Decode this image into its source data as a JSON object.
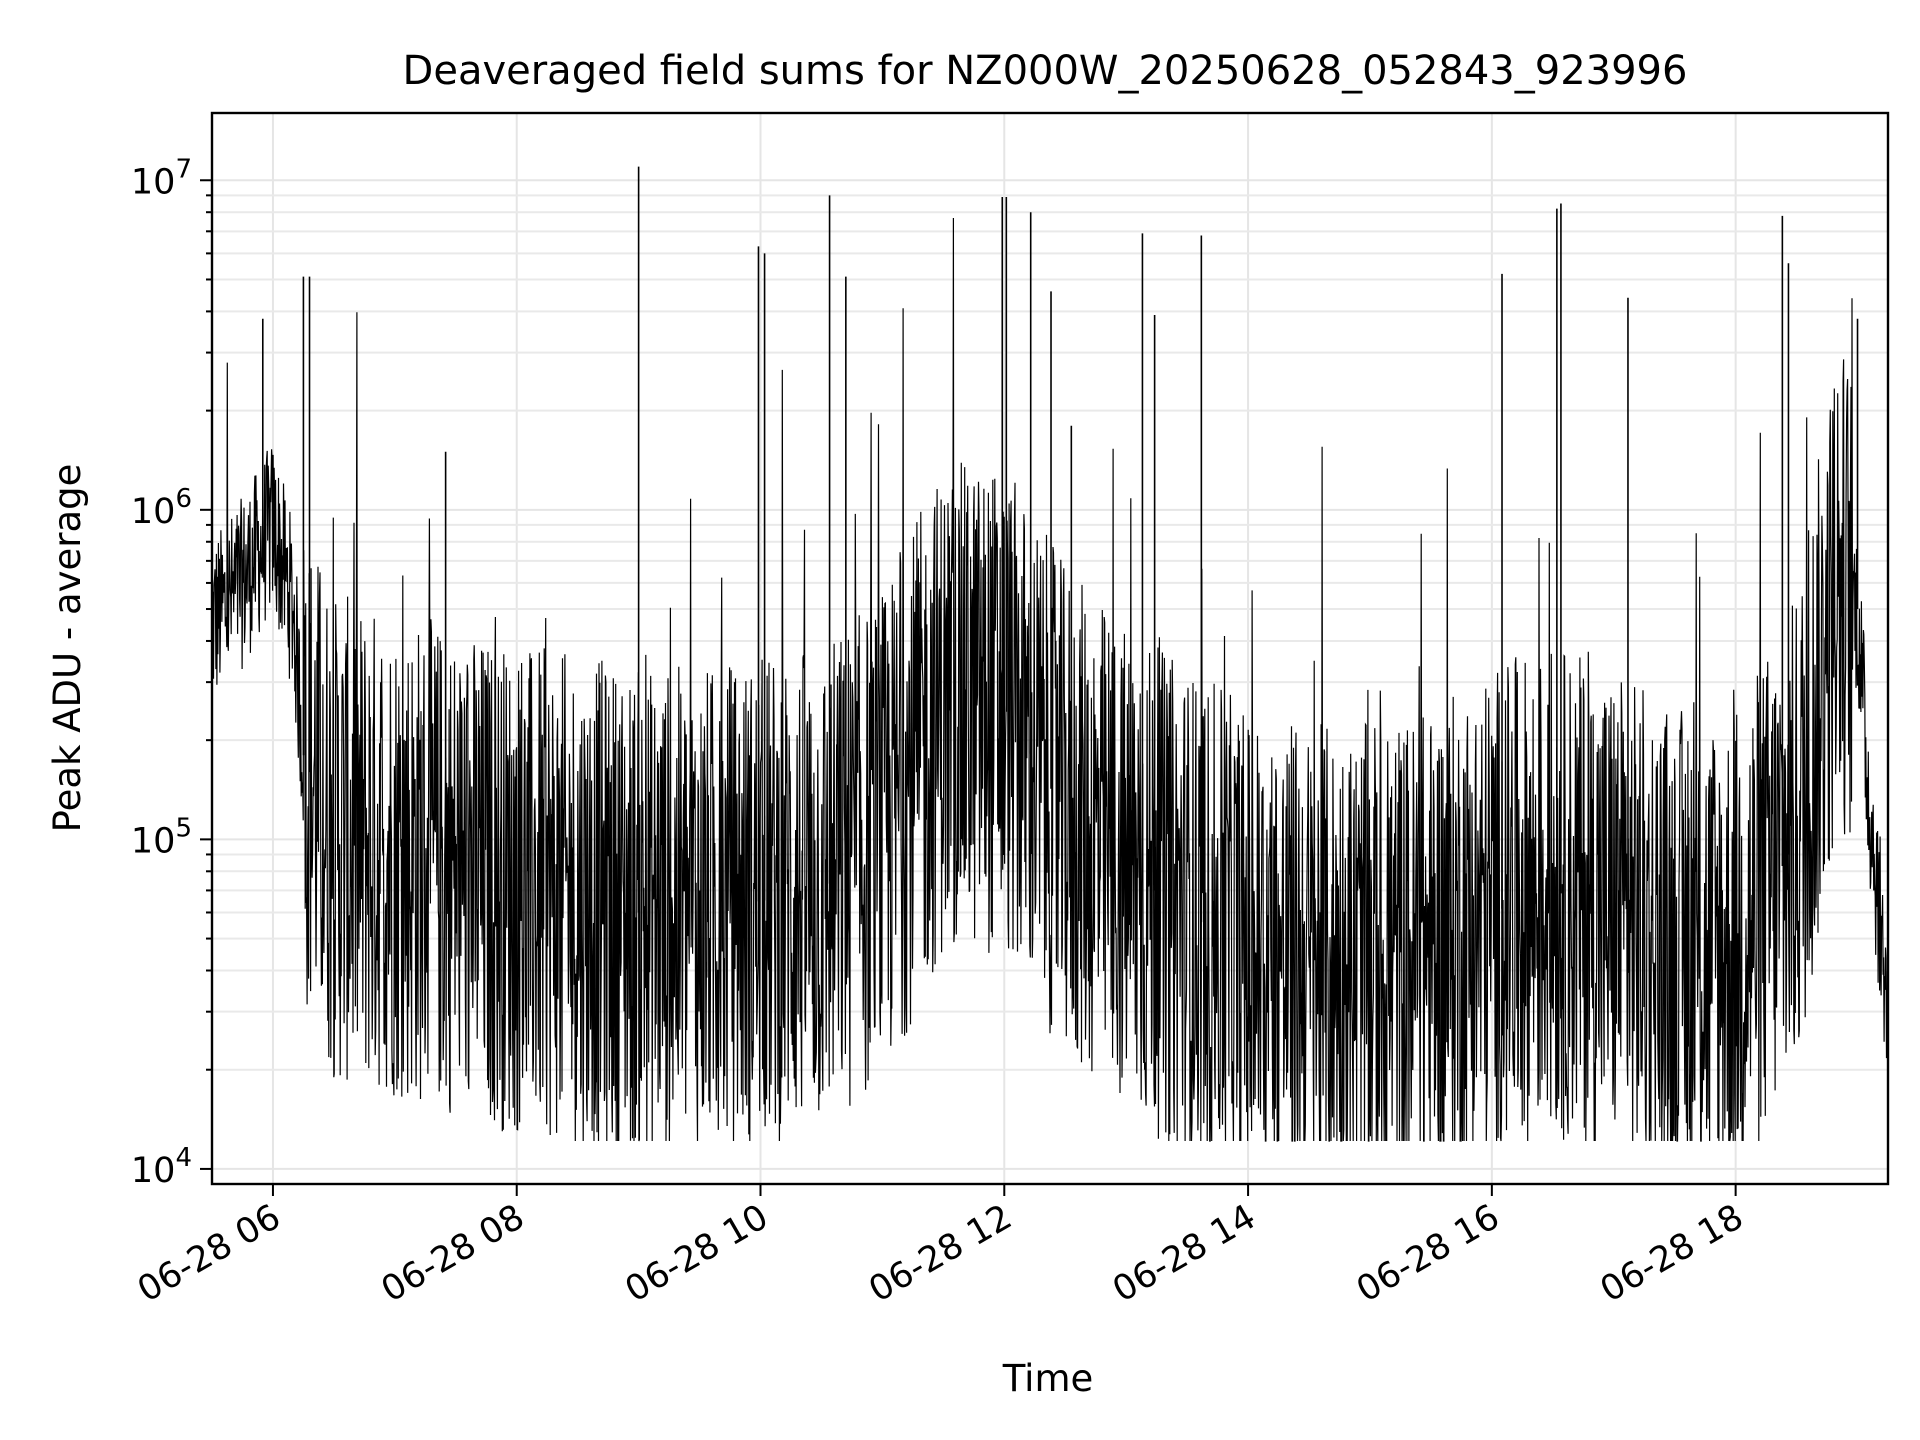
{
  "chart_data": {
    "type": "line",
    "title": "Deaveraged field sums for NZ000W_20250628_052843_923996",
    "xlabel": "Time",
    "ylabel": "Peak ADU - average",
    "yscale": "log",
    "ylim": [
      9000,
      16000000
    ],
    "xlim": [
      "2025-06-28 05:30",
      "2025-06-28 19:15"
    ],
    "grid": true,
    "line_color": "#000000",
    "x_ticks": [
      {
        "x": "2025-06-28 06:00",
        "label": "06-28 06"
      },
      {
        "x": "2025-06-28 08:00",
        "label": "06-28 08"
      },
      {
        "x": "2025-06-28 10:00",
        "label": "06-28 10"
      },
      {
        "x": "2025-06-28 12:00",
        "label": "06-28 12"
      },
      {
        "x": "2025-06-28 14:00",
        "label": "06-28 14"
      },
      {
        "x": "2025-06-28 16:00",
        "label": "06-28 16"
      },
      {
        "x": "2025-06-28 18:00",
        "label": "06-28 18"
      }
    ],
    "y_ticks": [
      {
        "y": 10000,
        "base": "10",
        "exp": "4"
      },
      {
        "y": 100000,
        "base": "10",
        "exp": "5"
      },
      {
        "y": 1000000,
        "base": "10",
        "exp": "6"
      },
      {
        "y": 10000000,
        "base": "10",
        "exp": "7"
      }
    ],
    "series": [
      {
        "points": [
          [
            "2025-06-28 05:30",
            450000
          ],
          [
            "2025-06-28 05:45",
            600000
          ],
          [
            "2025-06-28 06:00",
            900000
          ],
          [
            "2025-06-28 06:10",
            500000
          ],
          [
            "2025-06-28 06:15",
            180000
          ],
          [
            "2025-06-28 06:30",
            100000
          ],
          [
            "2025-06-28 07:00",
            90000
          ],
          [
            "2025-06-28 07:30",
            80000
          ],
          [
            "2025-06-28 08:00",
            70000
          ],
          [
            "2025-06-28 08:30",
            65000
          ],
          [
            "2025-06-28 09:00",
            60000
          ],
          [
            "2025-06-28 09:30",
            60000
          ],
          [
            "2025-06-28 10:00",
            65000
          ],
          [
            "2025-06-28 10:30",
            70000
          ],
          [
            "2025-06-28 11:00",
            100000
          ],
          [
            "2025-06-28 11:30",
            250000
          ],
          [
            "2025-06-28 12:00",
            250000
          ],
          [
            "2025-06-28 12:30",
            120000
          ],
          [
            "2025-06-28 13:00",
            80000
          ],
          [
            "2025-06-28 13:30",
            60000
          ],
          [
            "2025-06-28 14:00",
            45000
          ],
          [
            "2025-06-28 14:30",
            40000
          ],
          [
            "2025-06-28 15:00",
            40000
          ],
          [
            "2025-06-28 15:30",
            45000
          ],
          [
            "2025-06-28 16:00",
            60000
          ],
          [
            "2025-06-28 16:30",
            70000
          ],
          [
            "2025-06-28 17:00",
            60000
          ],
          [
            "2025-06-28 17:30",
            45000
          ],
          [
            "2025-06-28 18:00",
            45000
          ],
          [
            "2025-06-28 18:30",
            100000
          ],
          [
            "2025-06-28 18:50",
            600000
          ],
          [
            "2025-06-28 19:00",
            500000
          ],
          [
            "2025-06-28 19:05",
            150000
          ],
          [
            "2025-06-28 19:15",
            30000
          ]
        ],
        "spikes": [
          [
            "2025-06-28 05:55",
            3800000
          ],
          [
            "2025-06-28 06:15",
            5100000
          ],
          [
            "2025-06-28 06:18",
            5100000
          ],
          [
            "2025-06-28 07:25",
            1500000
          ],
          [
            "2025-06-28 09:00",
            11000000
          ],
          [
            "2025-06-28 09:59",
            6300000
          ],
          [
            "2025-06-28 10:02",
            6000000
          ],
          [
            "2025-06-28 10:34",
            9000000
          ],
          [
            "2025-06-28 10:42",
            5100000
          ],
          [
            "2025-06-28 11:59",
            8900000
          ],
          [
            "2025-06-28 12:01",
            8900000
          ],
          [
            "2025-06-28 12:13",
            8000000
          ],
          [
            "2025-06-28 12:23",
            4600000
          ],
          [
            "2025-06-28 12:33",
            1800000
          ],
          [
            "2025-06-28 13:08",
            6900000
          ],
          [
            "2025-06-28 13:14",
            3900000
          ],
          [
            "2025-06-28 13:37",
            6800000
          ],
          [
            "2025-06-28 16:05",
            5200000
          ],
          [
            "2025-06-28 16:32",
            8200000
          ],
          [
            "2025-06-28 16:34",
            8500000
          ],
          [
            "2025-06-28 17:07",
            4400000
          ],
          [
            "2025-06-28 18:23",
            7800000
          ],
          [
            "2025-06-28 18:26",
            5600000
          ],
          [
            "2025-06-28 19:00",
            3800000
          ]
        ]
      }
    ]
  }
}
